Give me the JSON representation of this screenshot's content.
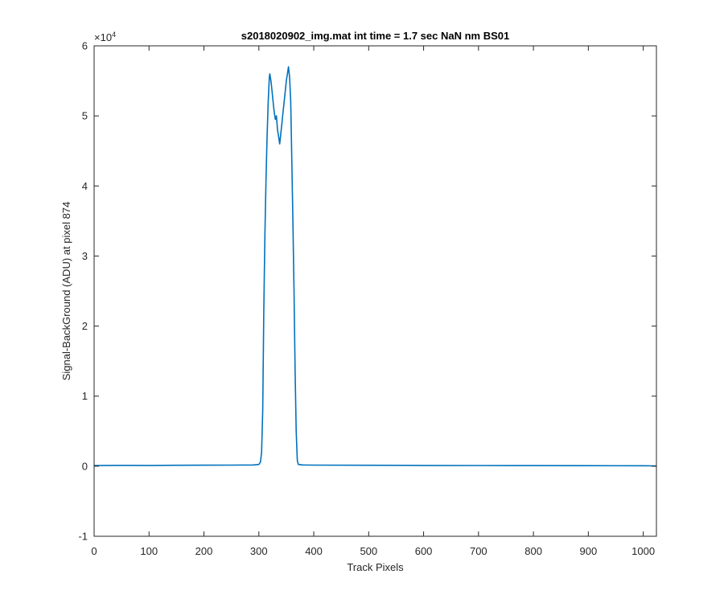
{
  "chart_data": {
    "type": "line",
    "title": "s2018020902_img.mat int time = 1.7 sec  NaN nm BS01",
    "xlabel": "Track Pixels",
    "ylabel": "Signal-BackGround (ADU) at pixel 874",
    "xlim": [
      0,
      1024
    ],
    "ylim": [
      -10000,
      60000
    ],
    "x_ticks": [
      0,
      100,
      200,
      300,
      400,
      500,
      600,
      700,
      800,
      900,
      1000
    ],
    "x_tick_labels": [
      "0",
      "100",
      "200",
      "300",
      "400",
      "500",
      "600",
      "700",
      "800",
      "900",
      "1000"
    ],
    "y_ticks": [
      -10000,
      0,
      10000,
      20000,
      30000,
      40000,
      50000,
      60000
    ],
    "y_tick_labels": [
      "-1",
      "0",
      "1",
      "2",
      "3",
      "4",
      "5",
      "6"
    ],
    "y_exponent": {
      "base": "×10",
      "power": "4"
    },
    "grid": false,
    "series": [
      {
        "color": "#0072BD",
        "points": [
          [
            0,
            100
          ],
          [
            50,
            120
          ],
          [
            100,
            110
          ],
          [
            150,
            130
          ],
          [
            200,
            140
          ],
          [
            250,
            150
          ],
          [
            290,
            180
          ],
          [
            300,
            250
          ],
          [
            303,
            600
          ],
          [
            305,
            2000
          ],
          [
            307,
            8000
          ],
          [
            309,
            22000
          ],
          [
            311,
            33000
          ],
          [
            313,
            41000
          ],
          [
            315,
            47000
          ],
          [
            317,
            52000
          ],
          [
            319,
            55500
          ],
          [
            320,
            56000
          ],
          [
            322,
            55000
          ],
          [
            324,
            53500
          ],
          [
            326,
            52000
          ],
          [
            328,
            50500
          ],
          [
            330,
            49500
          ],
          [
            332,
            50000
          ],
          [
            334,
            48000
          ],
          [
            336,
            47000
          ],
          [
            338,
            46000
          ],
          [
            340,
            47500
          ],
          [
            342,
            49000
          ],
          [
            344,
            50500
          ],
          [
            346,
            52000
          ],
          [
            348,
            53500
          ],
          [
            350,
            55000
          ],
          [
            352,
            56000
          ],
          [
            354,
            57000
          ],
          [
            356,
            55500
          ],
          [
            358,
            52000
          ],
          [
            360,
            44000
          ],
          [
            362,
            35000
          ],
          [
            364,
            25000
          ],
          [
            366,
            14000
          ],
          [
            368,
            5000
          ],
          [
            370,
            800
          ],
          [
            372,
            250
          ],
          [
            380,
            180
          ],
          [
            400,
            150
          ],
          [
            500,
            130
          ],
          [
            600,
            110
          ],
          [
            700,
            100
          ],
          [
            800,
            90
          ],
          [
            900,
            80
          ],
          [
            1000,
            60
          ],
          [
            1024,
            40
          ]
        ]
      }
    ]
  }
}
